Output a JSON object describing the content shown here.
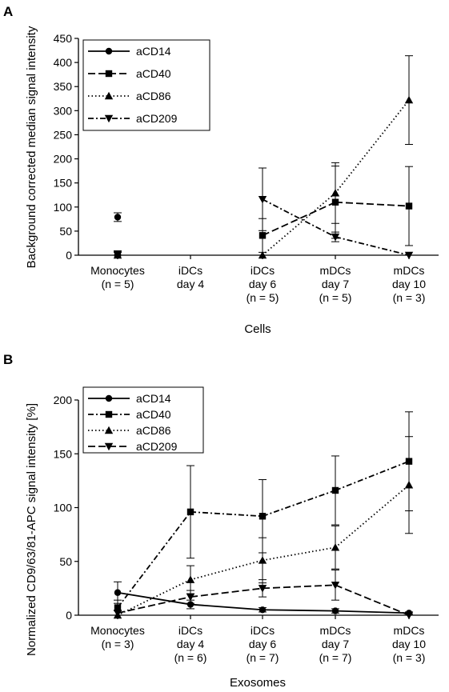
{
  "chart_data": [
    {
      "panel": "A",
      "type": "line",
      "xlabel": "Cells",
      "ylabel": "Background corrected median signal intensity",
      "ylim": [
        0,
        450
      ],
      "yticks": [
        0,
        50,
        100,
        150,
        200,
        250,
        300,
        350,
        400,
        450
      ],
      "categories": [
        [
          "Monocytes",
          "(n = 5)"
        ],
        [
          "iDCs",
          "day 4"
        ],
        [
          "iDCs",
          "day 6",
          "(n = 5)"
        ],
        [
          "mDCs",
          "day 7",
          "(n = 5)"
        ],
        [
          "mDCs",
          "day 10",
          "(n = 3)"
        ]
      ],
      "legend_position": "top-left",
      "series": [
        {
          "name": "aCD14",
          "marker": "circle",
          "dash": "solid",
          "values": [
            79,
            null,
            null,
            null,
            null
          ],
          "err": [
            9,
            null,
            null,
            null,
            null
          ]
        },
        {
          "name": "aCD40",
          "marker": "square",
          "dash": "long-dash",
          "values": [
            3,
            null,
            41,
            110,
            102
          ],
          "err": [
            3,
            null,
            35,
            75,
            82
          ]
        },
        {
          "name": "aCD86",
          "marker": "triangle-up",
          "dash": "dotted",
          "values": [
            0,
            null,
            0,
            129,
            322
          ],
          "err": [
            0,
            null,
            0,
            63,
            92
          ]
        },
        {
          "name": "aCD209",
          "marker": "triangle-down",
          "dash": "dash-dot",
          "values": [
            1,
            null,
            116,
            38,
            0
          ],
          "err": [
            8,
            null,
            65,
            10,
            0
          ]
        }
      ]
    },
    {
      "panel": "B",
      "type": "line",
      "xlabel": "Exosomes",
      "ylabel": "Normalized CD9/63/81-APC signal intensity [%]",
      "ylim": [
        0,
        200
      ],
      "yticks": [
        0,
        50,
        100,
        150,
        200
      ],
      "categories": [
        [
          "Monocytes",
          "(n = 3)"
        ],
        [
          "iDCs",
          "day 4",
          "(n = 6)"
        ],
        [
          "iDCs",
          "day 6",
          "(n = 7)"
        ],
        [
          "mDCs",
          "day 7",
          "(n = 7)"
        ],
        [
          "mDCs",
          "day 10",
          "(n = 3)"
        ]
      ],
      "legend_position": "top-left",
      "series": [
        {
          "name": "aCD14",
          "marker": "circle",
          "dash": "solid",
          "values": [
            21,
            10,
            5,
            4,
            2
          ],
          "err": [
            10,
            4,
            2,
            2,
            1
          ]
        },
        {
          "name": "aCD40",
          "marker": "square",
          "dash": "dash-dot",
          "values": [
            7,
            96,
            92,
            116,
            143
          ],
          "err": [
            7,
            43,
            34,
            32,
            46
          ]
        },
        {
          "name": "aCD86",
          "marker": "triangle-up",
          "dash": "dotted",
          "values": [
            0,
            33,
            51,
            63,
            121
          ],
          "err": [
            0,
            13,
            21,
            20,
            45
          ]
        },
        {
          "name": "aCD209",
          "marker": "triangle-down",
          "dash": "long-dash",
          "values": [
            2,
            17,
            25,
            28,
            0
          ],
          "err": [
            2,
            6,
            8,
            14,
            0
          ]
        }
      ]
    }
  ]
}
